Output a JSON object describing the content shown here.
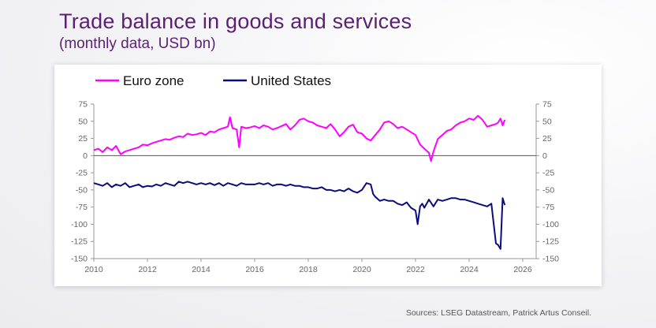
{
  "header": {
    "title": "Trade balance in goods and services",
    "subtitle": "(monthly data, USD bn)"
  },
  "footer": {
    "source": "Sources: LSEG Datastream, Patrick Artus Conseil."
  },
  "colors": {
    "euro_zone": "#ff00ff",
    "united_states": "#0b0b7a",
    "title": "#5b1f73",
    "axis": "#999999"
  },
  "chart_data": {
    "type": "line",
    "title": "Trade balance in goods and services",
    "subtitle": "(monthly data, USD bn)",
    "xlabel": "",
    "ylabel": "",
    "xlim": [
      2010,
      2026.5
    ],
    "ylim": [
      -150,
      75
    ],
    "x_ticks": [
      "2010",
      "2012",
      "2014",
      "2016",
      "2018",
      "2020",
      "2022",
      "2024",
      "2026"
    ],
    "x_tick_values": [
      2010,
      2012,
      2014,
      2016,
      2018,
      2020,
      2022,
      2024,
      2026
    ],
    "y_ticks": [
      "75",
      "50",
      "25",
      "0",
      "-25",
      "-50",
      "-75",
      "-100",
      "-125",
      "-150"
    ],
    "y_tick_values": [
      75,
      50,
      25,
      0,
      -25,
      -50,
      -75,
      -100,
      -125,
      -150
    ],
    "grid": false,
    "legend_position": "top-left",
    "series": [
      {
        "name": "Euro zone",
        "color": "#ff00ff",
        "x": [
          2010.0,
          2010.17,
          2010.33,
          2010.5,
          2010.67,
          2010.83,
          2011.0,
          2011.17,
          2011.33,
          2011.5,
          2011.67,
          2011.83,
          2012.0,
          2012.17,
          2012.33,
          2012.5,
          2012.67,
          2012.83,
          2013.0,
          2013.17,
          2013.33,
          2013.5,
          2013.67,
          2013.83,
          2014.0,
          2014.17,
          2014.33,
          2014.5,
          2014.67,
          2014.83,
          2015.0,
          2015.08,
          2015.17,
          2015.33,
          2015.42,
          2015.5,
          2015.67,
          2015.83,
          2016.0,
          2016.17,
          2016.33,
          2016.5,
          2016.67,
          2016.83,
          2017.0,
          2017.17,
          2017.33,
          2017.5,
          2017.67,
          2017.83,
          2018.0,
          2018.17,
          2018.33,
          2018.5,
          2018.67,
          2018.83,
          2019.0,
          2019.17,
          2019.33,
          2019.5,
          2019.67,
          2019.83,
          2020.0,
          2020.17,
          2020.33,
          2020.5,
          2020.67,
          2020.83,
          2021.0,
          2021.17,
          2021.33,
          2021.5,
          2021.67,
          2021.83,
          2022.0,
          2022.17,
          2022.33,
          2022.5,
          2022.58,
          2022.67,
          2022.83,
          2023.0,
          2023.17,
          2023.33,
          2023.5,
          2023.67,
          2023.83,
          2024.0,
          2024.17,
          2024.33,
          2024.5,
          2024.67,
          2024.83,
          2025.0,
          2025.08,
          2025.17,
          2025.25,
          2025.33
        ],
        "values": [
          8,
          10,
          5,
          12,
          8,
          14,
          2,
          6,
          8,
          10,
          12,
          16,
          15,
          18,
          20,
          22,
          24,
          23,
          26,
          28,
          27,
          32,
          30,
          31,
          33,
          30,
          35,
          34,
          38,
          40,
          42,
          56,
          40,
          38,
          12,
          42,
          40,
          41,
          43,
          40,
          44,
          42,
          38,
          40,
          43,
          46,
          38,
          44,
          52,
          54,
          50,
          48,
          44,
          42,
          40,
          46,
          38,
          28,
          34,
          42,
          45,
          34,
          32,
          25,
          22,
          30,
          38,
          48,
          50,
          46,
          40,
          42,
          38,
          34,
          30,
          16,
          10,
          4,
          -8,
          6,
          24,
          30,
          36,
          38,
          44,
          48,
          50,
          54,
          52,
          58,
          52,
          42,
          44,
          46,
          48,
          54,
          44,
          52
        ]
      },
      {
        "name": "United States",
        "color": "#0b0b7a",
        "x": [
          2010.0,
          2010.17,
          2010.33,
          2010.5,
          2010.67,
          2010.83,
          2011.0,
          2011.17,
          2011.33,
          2011.5,
          2011.67,
          2011.83,
          2012.0,
          2012.17,
          2012.33,
          2012.5,
          2012.67,
          2012.83,
          2013.0,
          2013.17,
          2013.33,
          2013.5,
          2013.67,
          2013.83,
          2014.0,
          2014.17,
          2014.33,
          2014.5,
          2014.67,
          2014.83,
          2015.0,
          2015.17,
          2015.33,
          2015.5,
          2015.67,
          2015.83,
          2016.0,
          2016.17,
          2016.33,
          2016.5,
          2016.67,
          2016.83,
          2017.0,
          2017.17,
          2017.33,
          2017.5,
          2017.67,
          2017.83,
          2018.0,
          2018.17,
          2018.33,
          2018.5,
          2018.67,
          2018.83,
          2019.0,
          2019.17,
          2019.33,
          2019.5,
          2019.67,
          2019.83,
          2020.0,
          2020.17,
          2020.33,
          2020.42,
          2020.5,
          2020.67,
          2020.83,
          2021.0,
          2021.17,
          2021.33,
          2021.5,
          2021.67,
          2021.83,
          2022.0,
          2022.08,
          2022.17,
          2022.25,
          2022.33,
          2022.5,
          2022.67,
          2022.83,
          2023.0,
          2023.17,
          2023.33,
          2023.5,
          2023.67,
          2023.83,
          2024.0,
          2024.17,
          2024.33,
          2024.5,
          2024.67,
          2024.83,
          2025.0,
          2025.08,
          2025.17,
          2025.25,
          2025.33
        ],
        "values": [
          -40,
          -42,
          -44,
          -40,
          -46,
          -42,
          -44,
          -40,
          -46,
          -44,
          -42,
          -46,
          -44,
          -45,
          -42,
          -44,
          -40,
          -42,
          -44,
          -38,
          -40,
          -38,
          -40,
          -42,
          -40,
          -42,
          -40,
          -43,
          -40,
          -44,
          -40,
          -42,
          -44,
          -40,
          -42,
          -42,
          -42,
          -40,
          -42,
          -40,
          -44,
          -42,
          -42,
          -44,
          -42,
          -44,
          -44,
          -46,
          -46,
          -48,
          -48,
          -46,
          -50,
          -50,
          -52,
          -50,
          -52,
          -48,
          -52,
          -54,
          -50,
          -40,
          -42,
          -56,
          -60,
          -66,
          -64,
          -66,
          -66,
          -70,
          -72,
          -68,
          -76,
          -80,
          -100,
          -74,
          -70,
          -76,
          -64,
          -74,
          -64,
          -66,
          -64,
          -62,
          -62,
          -64,
          -64,
          -66,
          -68,
          -70,
          -72,
          -74,
          -70,
          -128,
          -130,
          -136,
          -62,
          -72
        ]
      }
    ]
  }
}
